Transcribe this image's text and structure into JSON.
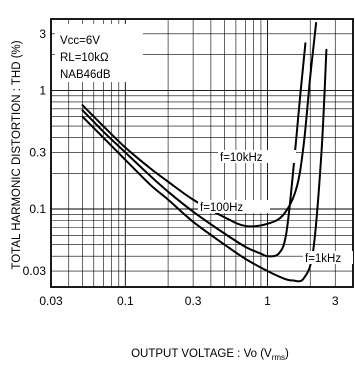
{
  "chart_data": {
    "type": "line",
    "title": "",
    "xlabel": "OUTPUT VOLTAGE : Vo (Vrms)",
    "xlabel_main": "OUTPUT  VOLTAGE : Vo (V",
    "xlabel_sub": "rms",
    "xlabel_close": ")",
    "ylabel": "TOTAL  HARMONIC  DISTORTION : THD (%)",
    "x_scale": "log",
    "y_scale": "log",
    "xlim": [
      0.03,
      4
    ],
    "ylim": [
      0.022,
      4
    ],
    "grid": true,
    "x_ticks": [
      {
        "value": 0.03,
        "label": "0.03"
      },
      {
        "value": 0.1,
        "label": "0.1"
      },
      {
        "value": 0.3,
        "label": "0.3"
      },
      {
        "value": 1,
        "label": "1"
      },
      {
        "value": 3,
        "label": "3"
      }
    ],
    "y_ticks": [
      {
        "value": 0.03,
        "label": "0.03"
      },
      {
        "value": 0.1,
        "label": "0.1"
      },
      {
        "value": 0.3,
        "label": "0.3"
      },
      {
        "value": 1,
        "label": "1"
      },
      {
        "value": 3,
        "label": "3"
      }
    ],
    "conditions": [
      "Vcc=6V",
      "RL=10kΩ",
      "NAB46dB"
    ],
    "series": [
      {
        "name": "f=10kHz",
        "x": [
          0.05,
          0.07,
          0.1,
          0.15,
          0.2,
          0.3,
          0.5,
          0.7,
          1.0,
          1.3,
          1.6,
          1.8,
          2.0,
          2.2
        ],
        "y": [
          0.75,
          0.5,
          0.33,
          0.22,
          0.17,
          0.12,
          0.085,
          0.072,
          0.075,
          0.09,
          0.15,
          0.35,
          1.3,
          3.7
        ]
      },
      {
        "name": "f=100Hz",
        "x": [
          0.05,
          0.07,
          0.1,
          0.15,
          0.2,
          0.3,
          0.5,
          0.7,
          0.9,
          1.0,
          1.2,
          1.35,
          1.5,
          1.7,
          1.85
        ],
        "y": [
          0.68,
          0.45,
          0.3,
          0.19,
          0.14,
          0.095,
          0.062,
          0.048,
          0.042,
          0.04,
          0.042,
          0.06,
          0.18,
          0.9,
          2.5
        ]
      },
      {
        "name": "f=1kHz",
        "x": [
          0.05,
          0.07,
          0.1,
          0.15,
          0.2,
          0.3,
          0.5,
          0.7,
          1.0,
          1.3,
          1.5,
          1.8,
          2.1,
          2.4,
          2.6
        ],
        "y": [
          0.6,
          0.4,
          0.26,
          0.16,
          0.12,
          0.078,
          0.05,
          0.038,
          0.03,
          0.026,
          0.025,
          0.026,
          0.045,
          0.3,
          2.2
        ]
      }
    ]
  }
}
